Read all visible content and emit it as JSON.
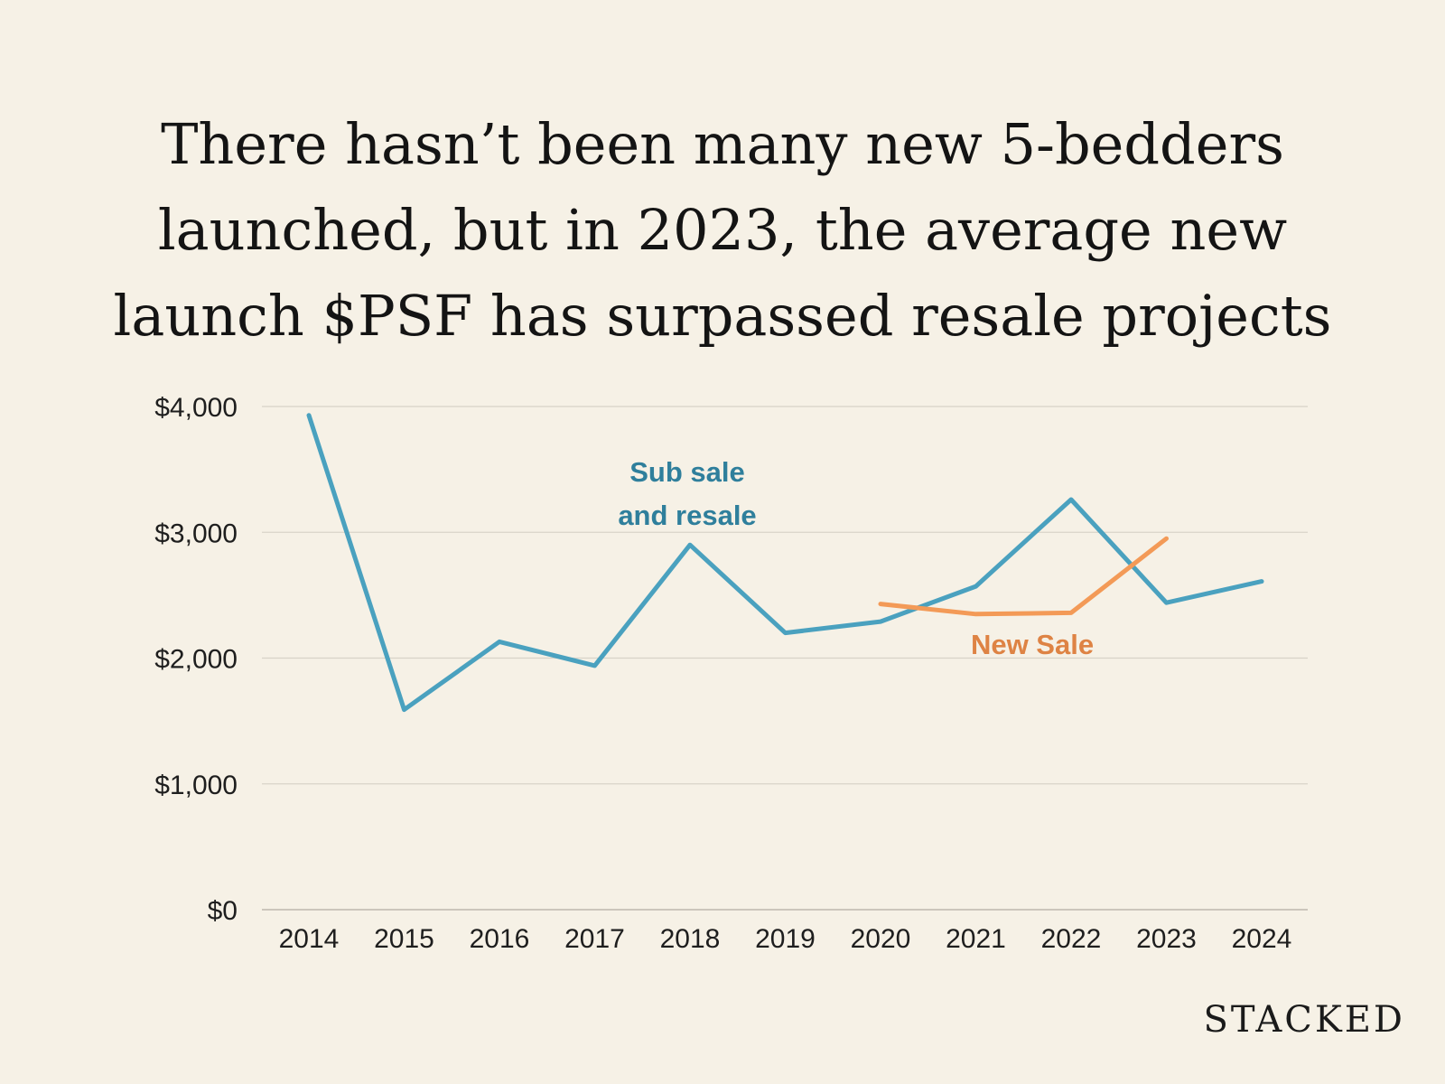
{
  "title_lines": [
    "There hasn’t been many new 5-bedders",
    "launched, but in 2023, the average new",
    "launch $PSF has surpassed resale projects"
  ],
  "brand": "STACKED",
  "colors": {
    "background": "#f6f1e6",
    "resale": "#4aa1bf",
    "resale_label": "#2f7f9c",
    "new_sale": "#f39a57",
    "new_sale_label": "#de8344",
    "grid": "#d8d3c8",
    "axis": "#bdb8ad"
  },
  "chart_data": {
    "type": "line",
    "title": "There hasn’t been many new 5-bedders launched, but in 2023, the average new launch $PSF has surpassed resale projects",
    "xlabel": "",
    "ylabel": "",
    "categories": [
      "2014",
      "2015",
      "2016",
      "2017",
      "2018",
      "2019",
      "2020",
      "2021",
      "2022",
      "2023",
      "2024"
    ],
    "ylim": [
      0,
      4000
    ],
    "yticks": [
      0,
      1000,
      2000,
      3000,
      4000
    ],
    "ytick_labels": [
      "$0",
      "$1,000",
      "$2,000",
      "$3,000",
      "$4,000"
    ],
    "grid": true,
    "legend": "none",
    "series": [
      {
        "name": "Sub sale and resale",
        "label_lines": [
          "Sub sale",
          "and resale"
        ],
        "color_key": "resale",
        "values": [
          3930,
          1590,
          2130,
          1940,
          2900,
          2200,
          2290,
          2570,
          3260,
          2440,
          2610
        ]
      },
      {
        "name": "New Sale",
        "label_lines": [
          "New Sale"
        ],
        "color_key": "new_sale",
        "values": [
          null,
          null,
          null,
          null,
          null,
          null,
          2430,
          2350,
          2360,
          2950,
          null
        ]
      }
    ]
  }
}
